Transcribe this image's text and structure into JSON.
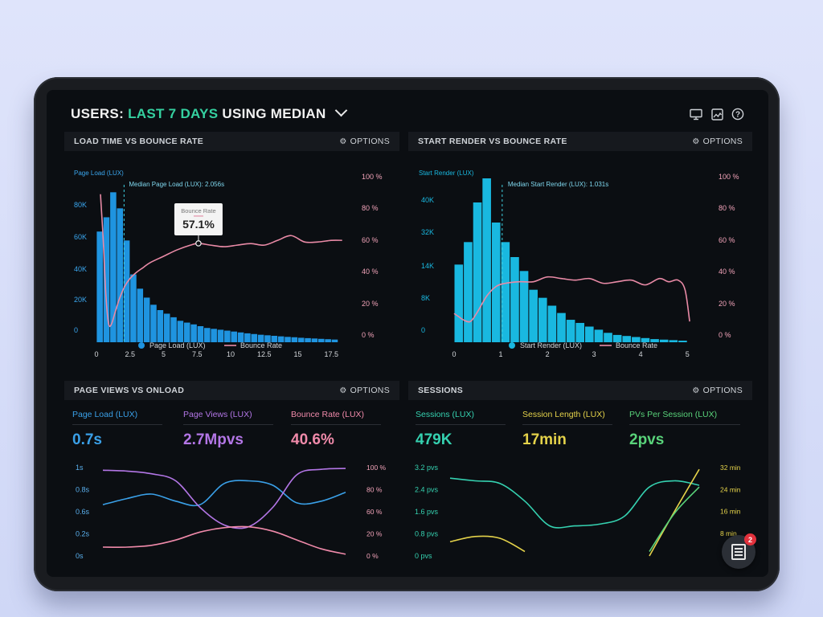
{
  "header": {
    "prefix": "USERS:",
    "accent": "LAST 7 DAYS",
    "suffix": "USING MEDIAN",
    "icons": [
      "monitor-icon",
      "image-icon",
      "help-icon"
    ]
  },
  "options_label": "OPTIONS",
  "panels": {
    "load_bounce": {
      "title": "LOAD TIME VS BOUNCE RATE",
      "y_left_title": "Page Load (LUX)",
      "median_label": "Median Page Load (LUX): 2.056s",
      "tooltip_label": "Bounce Rate",
      "tooltip_value": "57.1%",
      "legend": [
        "Page Load (LUX)",
        "Bounce Rate"
      ]
    },
    "render_bounce": {
      "title": "START RENDER VS BOUNCE RATE",
      "y_left_title": "Start Render (LUX)",
      "median_label": "Median Start Render (LUX): 1.031s",
      "legend": [
        "Start Render (LUX)",
        "Bounce Rate"
      ]
    },
    "pageviews_onload": {
      "title": "PAGE VIEWS VS ONLOAD",
      "metrics": [
        {
          "label": "Page Load (LUX)",
          "value": "0.7s",
          "color": "#3aa0e8"
        },
        {
          "label": "Page Views (LUX)",
          "value": "2.7Mpvs",
          "color": "#b376e6"
        },
        {
          "label": "Bounce Rate (LUX)",
          "value": "40.6%",
          "color": "#f08aaa"
        }
      ]
    },
    "sessions": {
      "title": "SESSIONS",
      "metrics": [
        {
          "label": "Sessions (LUX)",
          "value": "479K",
          "color": "#35d1b0"
        },
        {
          "label": "Session Length (LUX)",
          "value": "17min",
          "color": "#e4d24a"
        },
        {
          "label": "PVs Per Session (LUX)",
          "value": "2pvs",
          "color": "#59d37a"
        }
      ]
    }
  },
  "badge_count": "2",
  "chart_data": [
    {
      "type": "bar",
      "id": "load_bounce",
      "xlabel": "",
      "x_ticks": [
        "0",
        "2.5",
        "5",
        "7.5",
        "10",
        "12.5",
        "15",
        "17.5"
      ],
      "xlim": [
        0,
        18.5
      ],
      "y_left_ticks": [
        "0",
        "20K",
        "40K",
        "60K",
        "80K"
      ],
      "ylim_left": [
        0,
        90000
      ],
      "y_right_ticks": [
        "0 %",
        "20 %",
        "40 %",
        "60 %",
        "80 %",
        "100 %"
      ],
      "ylim_right": [
        0,
        100
      ],
      "median": 2.056,
      "bar_width": 0.5,
      "bars_x": [
        0.25,
        0.75,
        1.25,
        1.75,
        2.25,
        2.75,
        3.25,
        3.75,
        4.25,
        4.75,
        5.25,
        5.75,
        6.25,
        6.75,
        7.25,
        7.75,
        8.25,
        8.75,
        9.25,
        9.75,
        10.25,
        10.75,
        11.25,
        11.75,
        12.25,
        12.75,
        13.25,
        13.75,
        14.25,
        14.75,
        15.25,
        15.75,
        16.25,
        16.75,
        17.25,
        17.75
      ],
      "bars_y": [
        62000,
        70000,
        84000,
        75000,
        57000,
        38000,
        30000,
        25000,
        21000,
        18000,
        16000,
        14000,
        12000,
        11000,
        10000,
        9000,
        8000,
        7500,
        7000,
        6500,
        6000,
        5500,
        5000,
        4600,
        4200,
        3900,
        3600,
        3300,
        3000,
        2800,
        2500,
        2300,
        2100,
        1900,
        1700,
        1500
      ],
      "series": [
        {
          "name": "Page Load (LUX)",
          "color": "#1f94e0"
        },
        {
          "name": "Bounce Rate",
          "color": "#e98aa6",
          "x": [
            0.3,
            0.5,
            0.7,
            0.9,
            1.1,
            1.4,
            1.7,
            2.1,
            2.5,
            3,
            3.5,
            4,
            5,
            6,
            7,
            7.6,
            8.5,
            9.5,
            10.5,
            11.5,
            12.5,
            13.5,
            14.5,
            15.5,
            16.5,
            17.5,
            18.3
          ],
          "y": [
            88,
            60,
            25,
            7,
            6,
            14,
            22,
            30,
            35,
            39,
            42,
            45,
            49,
            53,
            56,
            57.1,
            56,
            55,
            56,
            57,
            56,
            59,
            62,
            58,
            58,
            59,
            59
          ]
        }
      ]
    },
    {
      "type": "bar",
      "id": "render_bounce",
      "xlabel": "",
      "x_ticks": [
        "0",
        "1",
        "2",
        "3",
        "4",
        "5"
      ],
      "xlim": [
        0,
        5.1
      ],
      "y_left_ticks": [
        "0",
        "8K",
        "14K",
        "32K",
        "40K"
      ],
      "y_right_ticks": [
        "0 %",
        "20 %",
        "40 %",
        "60 %",
        "80 %",
        "100 %"
      ],
      "ylim_right": [
        0,
        100
      ],
      "median": 1.031,
      "bar_width": 0.2,
      "bars_x": [
        0.1,
        0.3,
        0.5,
        0.7,
        0.9,
        1.1,
        1.3,
        1.5,
        1.7,
        1.9,
        2.1,
        2.3,
        2.5,
        2.7,
        2.9,
        3.1,
        3.3,
        3.5,
        3.7,
        3.9,
        4.1,
        4.3,
        4.5,
        4.7,
        4.9
      ],
      "bars_y": [
        16,
        28,
        40,
        46,
        35,
        28,
        20,
        13.5,
        10,
        8.5,
        7,
        5.6,
        4.3,
        3.7,
        3.0,
        2.4,
        1.8,
        1.4,
        1.2,
        1.0,
        0.8,
        0.6,
        0.5,
        0.4,
        0.3
      ],
      "series": [
        {
          "name": "Start Render (LUX)",
          "color": "#19b8e0"
        },
        {
          "name": "Bounce Rate",
          "color": "#e98aa6",
          "x": [
            0,
            0.1,
            0.2,
            0.35,
            0.5,
            0.7,
            0.9,
            1.1,
            1.4,
            1.7,
            2.0,
            2.3,
            2.6,
            2.9,
            3.2,
            3.5,
            3.8,
            4.1,
            4.4,
            4.6,
            4.8,
            4.95,
            5.05
          ],
          "y": [
            13,
            11,
            9,
            8,
            14,
            24,
            30,
            32,
            33,
            33,
            36,
            35,
            34,
            35,
            32,
            33,
            34,
            31,
            35,
            33,
            34,
            28,
            8
          ]
        }
      ]
    },
    {
      "type": "line",
      "id": "pageviews_onload",
      "x": [
        0,
        0.1,
        0.2,
        0.3,
        0.4,
        0.5,
        0.6,
        0.7,
        0.8,
        0.9,
        1
      ],
      "y_left_ticks": [
        "0s",
        "0.2s",
        "0.6s",
        "0.8s",
        "1s"
      ],
      "y_right_ticks": [
        "0 %",
        "20 %",
        "60 %",
        "80 %",
        "100 %"
      ],
      "series": [
        {
          "name": "Page Load (LUX)",
          "color": "#3aa0e8",
          "y": [
            0.58,
            0.65,
            0.7,
            0.62,
            0.58,
            0.82,
            0.85,
            0.8,
            0.6,
            0.62,
            0.72
          ]
        },
        {
          "name": "Page Views (LUX)",
          "color": "#b376e6",
          "y": [
            0.97,
            0.96,
            0.93,
            0.85,
            0.55,
            0.35,
            0.33,
            0.55,
            0.92,
            0.98,
            0.99
          ]
        },
        {
          "name": "Bounce Rate (LUX)",
          "color": "#f08aaa",
          "y": [
            0.1,
            0.1,
            0.12,
            0.18,
            0.27,
            0.32,
            0.33,
            0.28,
            0.18,
            0.08,
            0.02
          ]
        }
      ]
    },
    {
      "type": "line",
      "id": "sessions",
      "x": [
        0,
        0.1,
        0.2,
        0.3,
        0.4,
        0.5,
        0.6,
        0.7,
        0.8,
        0.9,
        1
      ],
      "y_left_ticks": [
        "0 pvs",
        "0.8 pvs",
        "1.6 pvs",
        "2.4 pvs",
        "3.2 pvs"
      ],
      "y_right_ticks": [
        "8 min",
        "16 min",
        "24 min",
        "32 min"
      ],
      "series": [
        {
          "name": "Sessions (LUX)",
          "color": "#35d1b0",
          "y": [
            0.88,
            0.85,
            0.82,
            0.62,
            0.34,
            0.34,
            0.36,
            0.45,
            0.78,
            0.85,
            0.8
          ]
        },
        {
          "name": "Session Length (LUX)",
          "color": "#e4d24a",
          "y": [
            0.16,
            0.22,
            0.2,
            0.05,
            null,
            null,
            null,
            null,
            0.0,
            0.5,
            0.98
          ]
        },
        {
          "name": "PVs Per Session (LUX)",
          "color": "#59d37a",
          "y": [
            null,
            null,
            null,
            null,
            null,
            null,
            null,
            null,
            0.05,
            0.48,
            0.78
          ]
        }
      ]
    }
  ]
}
